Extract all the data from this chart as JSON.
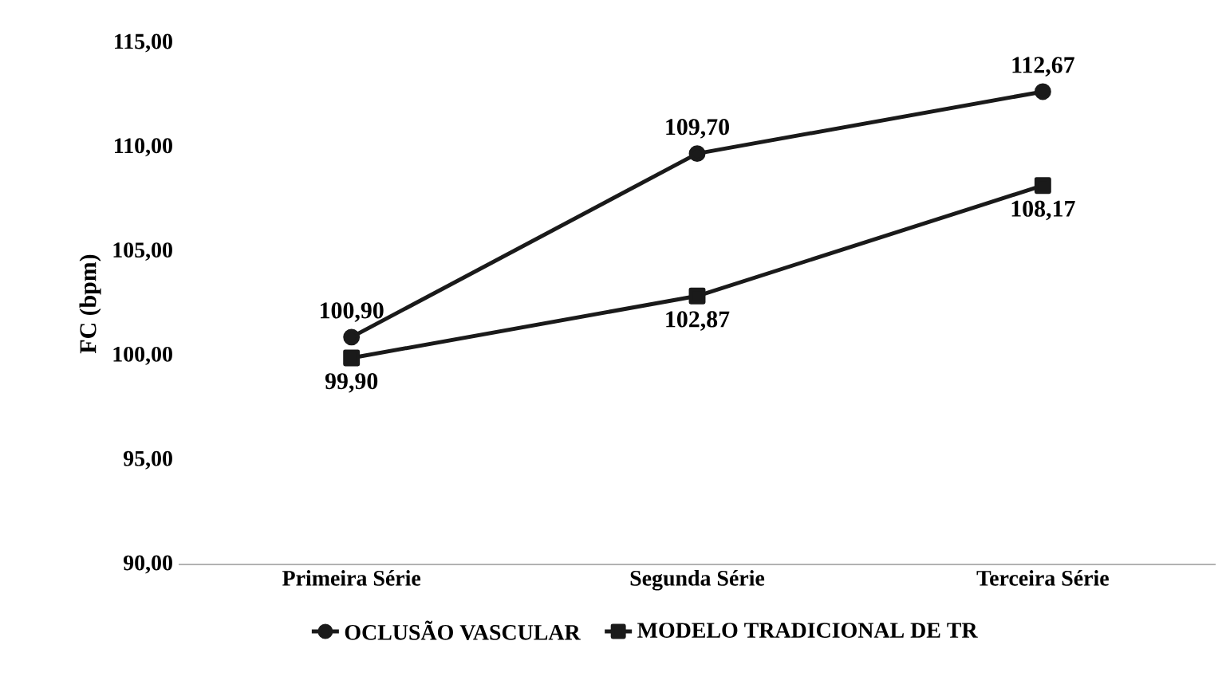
{
  "chart_data": {
    "type": "line",
    "ylabel": "FC (bpm)",
    "categories": [
      "Primeira Série",
      "Segunda Série",
      "Terceira Série"
    ],
    "series": [
      {
        "name": "OCLUSÃO VASCULAR",
        "color": "#1a1a1a",
        "marker": "circle",
        "values": [
          100.9,
          109.7,
          112.67
        ],
        "value_labels": [
          "100,90",
          "109,70",
          "112,67"
        ]
      },
      {
        "name": "MODELO TRADICIONAL DE TR",
        "color": "#1a1a1a",
        "marker": "square",
        "values": [
          99.9,
          102.87,
          108.17
        ],
        "value_labels": [
          "99,90",
          "102,87",
          "108,17"
        ]
      }
    ],
    "ylim": [
      90,
      115
    ],
    "yticks": [
      {
        "value": 90,
        "label": "90,00"
      },
      {
        "value": 95,
        "label": "95,00"
      },
      {
        "value": 100,
        "label": "100,00"
      },
      {
        "value": 105,
        "label": "105,00"
      },
      {
        "value": 110,
        "label": "110,00"
      },
      {
        "value": 115,
        "label": "115,00"
      }
    ],
    "grid": false,
    "legend": "bottom",
    "line_style": "solid"
  }
}
